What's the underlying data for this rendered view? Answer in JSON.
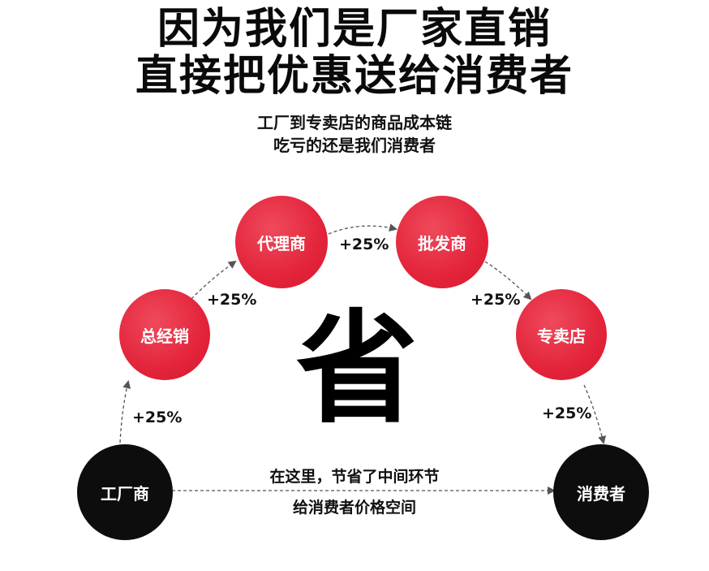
{
  "header": {
    "line1": "因为我们是厂家直销",
    "line2": "直接把优惠送给消费者",
    "sub1": "工厂到专卖店的商品成本链",
    "sub2": "吃亏的还是我们消费者"
  },
  "nodes": {
    "factory": "工厂商",
    "general_distributor": "总经销",
    "agent": "代理商",
    "wholesaler": "批发商",
    "store": "专卖店",
    "consumer": "消费者"
  },
  "markups": {
    "factory_to_general": "+25%",
    "general_to_agent": "+25%",
    "agent_to_wholesaler": "+25%",
    "wholesaler_to_store": "+25%",
    "store_to_consumer": "+25%"
  },
  "center_char": "省",
  "bottom_note": {
    "line1": "在这里，节省了中间环节",
    "line2": "给消费者价格空间"
  },
  "colors": {
    "red_node": "#e3243b",
    "black_node": "#0d0d0d",
    "arrow": "#555555"
  }
}
